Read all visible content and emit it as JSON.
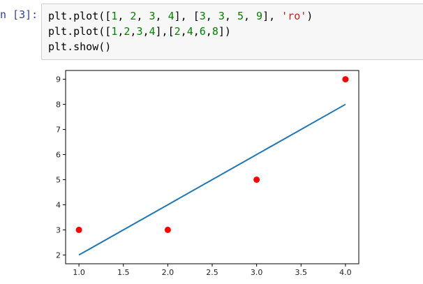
{
  "cell": {
    "prompt": "n [3]:",
    "lines": [
      {
        "segments": [
          {
            "text": "plt.plot([",
            "type": "plain"
          },
          {
            "text": "1",
            "type": "num"
          },
          {
            "text": ", ",
            "type": "plain"
          },
          {
            "text": "2",
            "type": "num"
          },
          {
            "text": ", ",
            "type": "plain"
          },
          {
            "text": "3",
            "type": "num"
          },
          {
            "text": ", ",
            "type": "plain"
          },
          {
            "text": "4",
            "type": "num"
          },
          {
            "text": "], [",
            "type": "plain"
          },
          {
            "text": "3",
            "type": "num"
          },
          {
            "text": ", ",
            "type": "plain"
          },
          {
            "text": "3",
            "type": "num"
          },
          {
            "text": ", ",
            "type": "plain"
          },
          {
            "text": "5",
            "type": "num"
          },
          {
            "text": ", ",
            "type": "plain"
          },
          {
            "text": "9",
            "type": "num"
          },
          {
            "text": "], ",
            "type": "plain"
          },
          {
            "text": "'ro'",
            "type": "str"
          },
          {
            "text": ")",
            "type": "plain"
          }
        ]
      },
      {
        "segments": [
          {
            "text": "plt.plot([",
            "type": "plain"
          },
          {
            "text": "1",
            "type": "num"
          },
          {
            "text": ",",
            "type": "plain"
          },
          {
            "text": "2",
            "type": "num"
          },
          {
            "text": ",",
            "type": "plain"
          },
          {
            "text": "3",
            "type": "num"
          },
          {
            "text": ",",
            "type": "plain"
          },
          {
            "text": "4",
            "type": "num"
          },
          {
            "text": "],[",
            "type": "plain"
          },
          {
            "text": "2",
            "type": "num"
          },
          {
            "text": ",",
            "type": "plain"
          },
          {
            "text": "4",
            "type": "num"
          },
          {
            "text": ",",
            "type": "plain"
          },
          {
            "text": "6",
            "type": "num"
          },
          {
            "text": ",",
            "type": "plain"
          },
          {
            "text": "8",
            "type": "num"
          },
          {
            "text": "])",
            "type": "plain"
          }
        ]
      },
      {
        "segments": [
          {
            "text": "plt.show()",
            "type": "plain"
          }
        ]
      }
    ]
  },
  "colors": {
    "prompt": "#303f9f",
    "number": "#008000",
    "string": "#ba2121",
    "line_series": "#1f77b4",
    "marker_series": "#ff0000",
    "cell_background": "#f7f7f7",
    "cell_border": "#cfcfcf"
  },
  "chart_data": {
    "type": "line",
    "title": "",
    "xlabel": "",
    "ylabel": "",
    "xlim": [
      0.85,
      4.15
    ],
    "ylim": [
      1.65,
      9.35
    ],
    "x_ticks": [
      1.0,
      1.5,
      2.0,
      2.5,
      3.0,
      3.5,
      4.0
    ],
    "x_tick_labels": [
      "1.0",
      "1.5",
      "2.0",
      "2.5",
      "3.0",
      "3.5",
      "4.0"
    ],
    "y_ticks": [
      2,
      3,
      4,
      5,
      6,
      7,
      8,
      9
    ],
    "y_tick_labels": [
      "2",
      "3",
      "4",
      "5",
      "6",
      "7",
      "8",
      "9"
    ],
    "grid": false,
    "legend": "none",
    "series": [
      {
        "style": "markers",
        "marker": "circle",
        "color": "#ff0000",
        "x": [
          1,
          2,
          3,
          4
        ],
        "y": [
          3,
          3,
          5,
          9
        ]
      },
      {
        "style": "line",
        "color": "#1f77b4",
        "x": [
          1,
          2,
          3,
          4
        ],
        "y": [
          2,
          4,
          6,
          8
        ]
      }
    ]
  }
}
